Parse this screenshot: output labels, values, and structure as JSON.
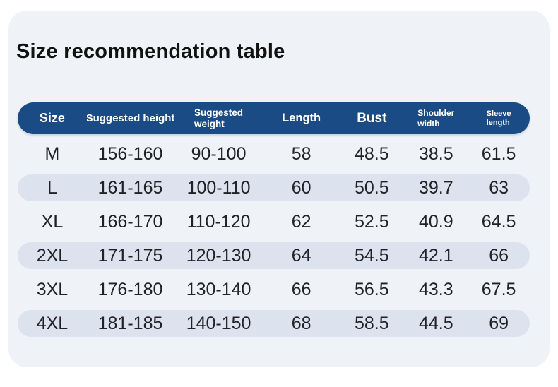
{
  "title": "Size recommendation table",
  "colors": {
    "page_bg": "#ffffff",
    "card_bg": "#eff3f7",
    "header_bg": "#1a4b84",
    "stripe_bg": "#dce3ee",
    "header_text": "#ffffff",
    "body_text": "#202226"
  },
  "table": {
    "columns": [
      {
        "id": "size",
        "label": "Size"
      },
      {
        "id": "suggested_height",
        "label": "Suggested height"
      },
      {
        "id": "suggested_weight",
        "label": "Suggested\nweight"
      },
      {
        "id": "length",
        "label": "Length"
      },
      {
        "id": "bust",
        "label": "Bust"
      },
      {
        "id": "shoulder_width",
        "label": "Shoulder\nwidth"
      },
      {
        "id": "sleeve_length",
        "label": "Sleeve\nlength"
      }
    ],
    "rows": [
      {
        "cells": [
          "M",
          "156-160",
          "90-100",
          "58",
          "48.5",
          "38.5",
          "61.5"
        ]
      },
      {
        "cells": [
          "L",
          "161-165",
          "100-110",
          "60",
          "50.5",
          "39.7",
          "63"
        ]
      },
      {
        "cells": [
          "XL",
          "166-170",
          "110-120",
          "62",
          "52.5",
          "40.9",
          "64.5"
        ]
      },
      {
        "cells": [
          "2XL",
          "171-175",
          "120-130",
          "64",
          "54.5",
          "42.1",
          "66"
        ]
      },
      {
        "cells": [
          "3XL",
          "176-180",
          "130-140",
          "66",
          "56.5",
          "43.3",
          "67.5"
        ]
      },
      {
        "cells": [
          "4XL",
          "181-185",
          "140-150",
          "68",
          "58.5",
          "44.5",
          "69"
        ]
      }
    ]
  }
}
